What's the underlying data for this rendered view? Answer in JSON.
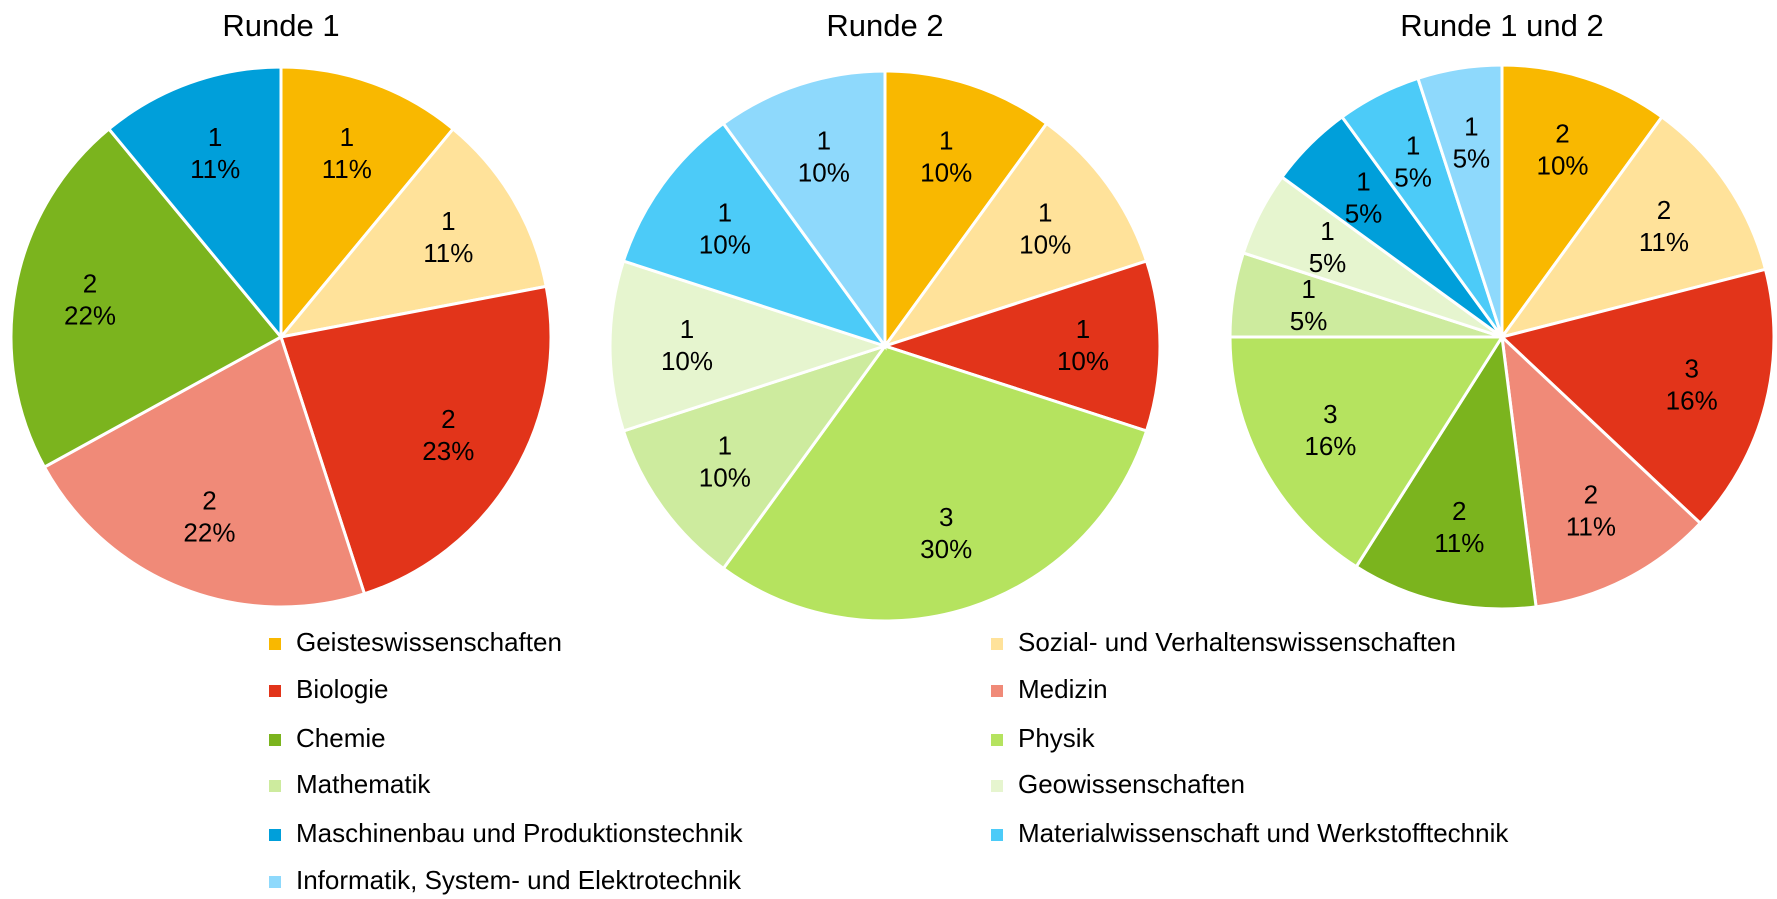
{
  "chart_data": [
    {
      "type": "pie",
      "title": "Runde 1",
      "categories": [
        "Geisteswissenschaften",
        "Sozial- und Verhaltenswissenschaften",
        "Biologie",
        "Medizin",
        "Chemie",
        "Maschinenbau und Produktionstechnik"
      ],
      "values": [
        11,
        11,
        23,
        22,
        22,
        11
      ],
      "value_labels": [
        "11%",
        "11%",
        "23%",
        "22%",
        "22%",
        "11%"
      ],
      "counts": [
        1,
        1,
        2,
        2,
        2,
        1
      ]
    },
    {
      "type": "pie",
      "title": "Runde 2",
      "categories": [
        "Geisteswissenschaften",
        "Sozial- und Verhaltenswissenschaften",
        "Biologie",
        "Physik",
        "Mathematik",
        "Geowissenschaften",
        "Materialwissenschaft und Werkstofftechnik",
        "Informatik, System- und Elektrotechnik"
      ],
      "values": [
        10,
        10,
        10,
        30,
        10,
        10,
        10,
        10
      ],
      "value_labels": [
        "10%",
        "10%",
        "10%",
        "30%",
        "10%",
        "10%",
        "10%",
        "10%"
      ],
      "counts": [
        1,
        1,
        1,
        3,
        1,
        1,
        1,
        1
      ]
    },
    {
      "type": "pie",
      "title": "Runde 1 und 2",
      "categories": [
        "Geisteswissenschaften",
        "Sozial- und Verhaltenswissenschaften",
        "Biologie",
        "Medizin",
        "Chemie",
        "Physik",
        "Mathematik",
        "Geowissenschaften",
        "Maschinenbau und Produktionstechnik",
        "Materialwissenschaft und Werkstofftechnik",
        "Informatik, System- und Elektrotechnik"
      ],
      "values": [
        10,
        11,
        16,
        11,
        11,
        16,
        5,
        5,
        5,
        5,
        5
      ],
      "value_labels": [
        "10%",
        "11%",
        "16%",
        "11%",
        "11%",
        "16%",
        "5%",
        "5%",
        "5%",
        "5%",
        "5%"
      ],
      "counts": [
        2,
        2,
        3,
        2,
        2,
        3,
        1,
        1,
        1,
        1,
        1
      ]
    }
  ],
  "legend": {
    "entries": [
      {
        "name": "Geisteswissenschaften",
        "color": "#f9b800"
      },
      {
        "name": "Sozial- und Verhaltenswissenschaften",
        "color": "#ffe29a"
      },
      {
        "name": "Biologie",
        "color": "#e2341a"
      },
      {
        "name": "Medizin",
        "color": "#f08a78"
      },
      {
        "name": "Chemie",
        "color": "#7bb41e"
      },
      {
        "name": "Physik",
        "color": "#b5e35f"
      },
      {
        "name": "Mathematik",
        "color": "#cdeb9e"
      },
      {
        "name": "Geowissenschaften",
        "color": "#e6f5cf"
      },
      {
        "name": "Maschinenbau und Produktionstechnik",
        "color": "#009fda"
      },
      {
        "name": "Materialwissenschaft und Werkstofftechnik",
        "color": "#4ccbf8"
      },
      {
        "name": "Informatik, System- und Elektrotechnik",
        "color": "#8ed9fc"
      }
    ]
  }
}
